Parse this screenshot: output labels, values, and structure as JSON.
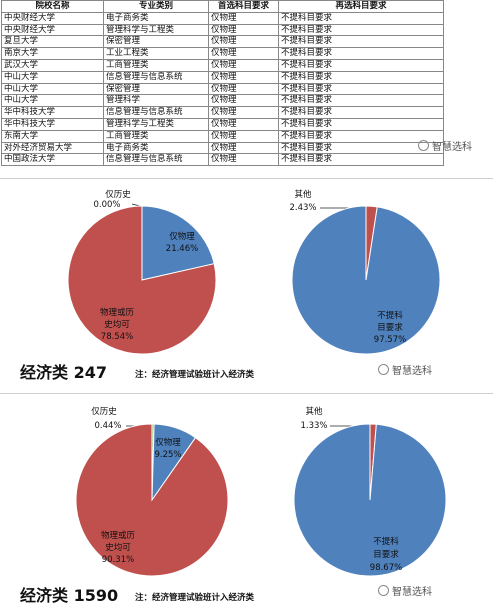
{
  "table": {
    "headers": [
      "院校名称",
      "专业类别",
      "首选科目要求",
      "再选科目要求"
    ],
    "rows": [
      [
        "中央财经大学",
        "电子商务类",
        "仅物理",
        "不提科目要求"
      ],
      [
        "中央财经大学",
        "管理科学与工程类",
        "仅物理",
        "不提科目要求"
      ],
      [
        "复旦大学",
        "保密管理",
        "仅物理",
        "不提科目要求"
      ],
      [
        "南京大学",
        "工业工程类",
        "仅物理",
        "不提科目要求"
      ],
      [
        "武汉大学",
        "工商管理类",
        "仅物理",
        "不提科目要求"
      ],
      [
        "中山大学",
        "信息管理与信息系统",
        "仅物理",
        "不提科目要求"
      ],
      [
        "中山大学",
        "保密管理",
        "仅物理",
        "不提科目要求"
      ],
      [
        "中山大学",
        "管理科学",
        "仅物理",
        "不提科目要求"
      ],
      [
        "华中科技大学",
        "信息管理与信息系统",
        "仅物理",
        "不提科目要求"
      ],
      [
        "华中科技大学",
        "管理科学与工程类",
        "仅物理",
        "不提科目要求"
      ],
      [
        "东南大学",
        "工商管理类",
        "仅物理",
        "不提科目要求"
      ],
      [
        "对外经济贸易大学",
        "电子商务类",
        "仅物理",
        "不提科目要求"
      ],
      [
        "中国政法大学",
        "信息管理与信息系统",
        "仅物理",
        "不提科目要求"
      ]
    ]
  },
  "watermark": "智慧选科",
  "chart_data": [
    {
      "type": "pie",
      "section_title": "经济类 247",
      "note": "注：经济管理试验班计入经济类",
      "slices": [
        {
          "label": "仅历史",
          "value": 0.0,
          "display": "0.00%",
          "color": "#ffffff"
        },
        {
          "label": "仅物理",
          "value": 21.46,
          "display": "21.46%",
          "color": "#4f81bd"
        },
        {
          "label": "物理或历史均可",
          "value": 78.54,
          "display": "78.54%",
          "color": "#c0504d"
        }
      ]
    },
    {
      "type": "pie",
      "slices": [
        {
          "label": "其他",
          "value": 2.43,
          "display": "2.43%",
          "color": "#c0504d"
        },
        {
          "label": "不提科目要求",
          "value": 97.57,
          "display": "97.57%",
          "color": "#4f81bd"
        }
      ]
    },
    {
      "type": "pie",
      "section_title": "经济类 1590",
      "note": "注：经济管理试验班计入经济类",
      "slices": [
        {
          "label": "仅历史",
          "value": 0.44,
          "display": "0.44%",
          "color": "#9bbb59"
        },
        {
          "label": "仅物理",
          "value": 9.25,
          "display": "9.25%",
          "color": "#4f81bd"
        },
        {
          "label": "物理或历史均可",
          "value": 90.31,
          "display": "90.31%",
          "color": "#c0504d"
        }
      ]
    },
    {
      "type": "pie",
      "slices": [
        {
          "label": "其他",
          "value": 1.33,
          "display": "1.33%",
          "color": "#c0504d"
        },
        {
          "label": "不提科目要求",
          "value": 98.67,
          "display": "98.67%",
          "color": "#4f81bd"
        }
      ]
    }
  ]
}
